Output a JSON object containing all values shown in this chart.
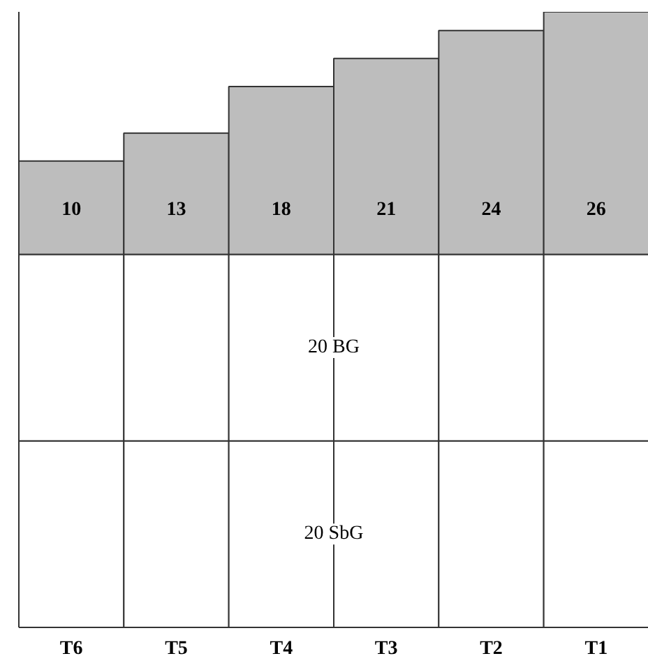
{
  "chart_data": {
    "type": "bar",
    "stacked": true,
    "categories": [
      "T6",
      "T5",
      "T4",
      "T3",
      "T2",
      "T1"
    ],
    "series": [
      {
        "name": "20 SbG",
        "color": "#ffffff",
        "values": [
          20,
          20,
          20,
          20,
          20,
          20
        ]
      },
      {
        "name": "20 BG",
        "color": "#ffffff",
        "values": [
          20,
          20,
          20,
          20,
          20,
          20
        ]
      },
      {
        "color": "#bdbdbd",
        "values": [
          10,
          13,
          18,
          21,
          24,
          26
        ],
        "data_labels": true
      }
    ],
    "tick_labels": "x"
  }
}
